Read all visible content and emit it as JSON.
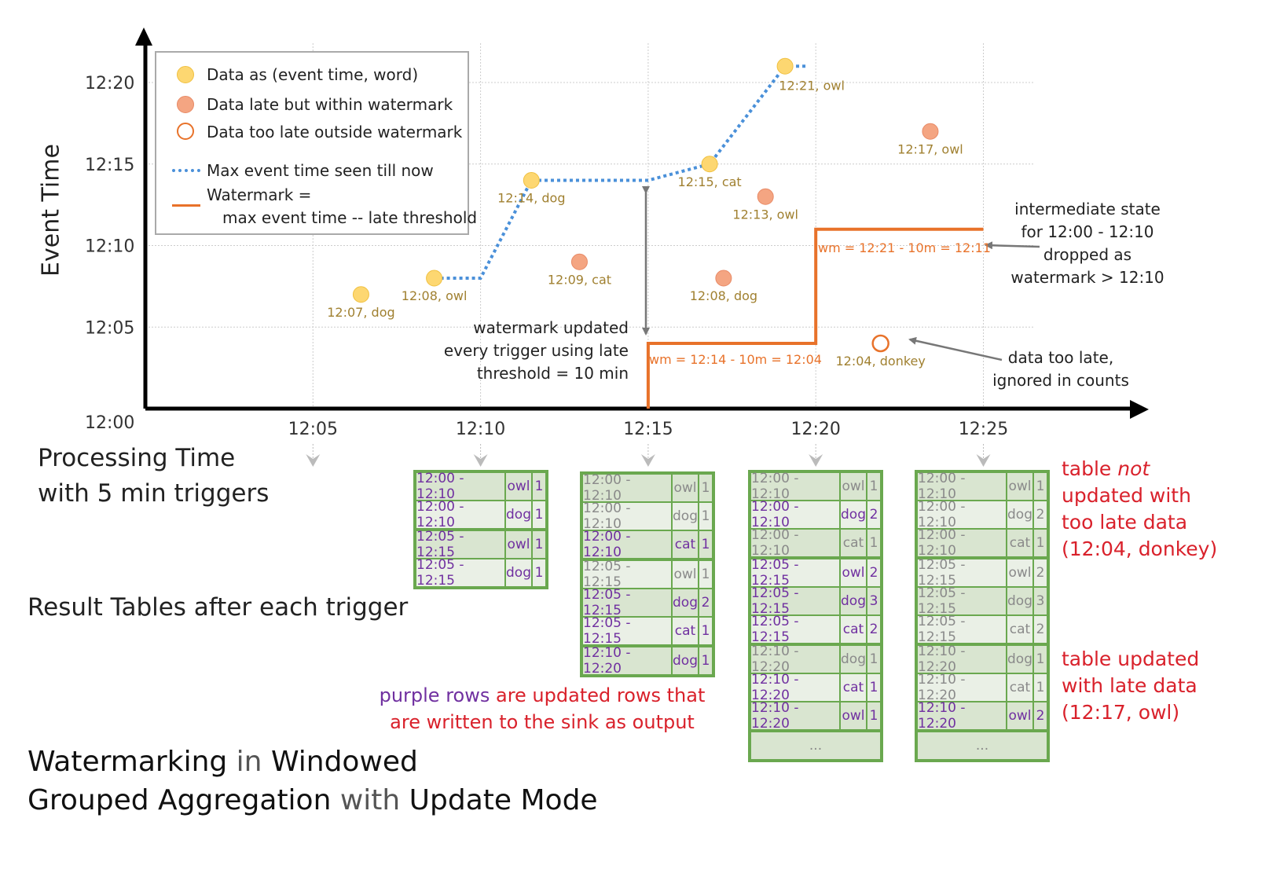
{
  "colors": {
    "data": "#fdd771",
    "late": "#f4a582",
    "too_late_stroke": "#e8722a",
    "max_line": "#4a90d9",
    "watermark": "#e8722a",
    "label": "#a08030",
    "purple": "#7030a0",
    "gray": "#8a8a8a",
    "green": "#6aa84f",
    "red": "#d9212b"
  },
  "axes": {
    "y_label": "Event Time",
    "x_label_line1": "Processing Time",
    "x_label_line2": "with 5 min triggers",
    "y_ticks": [
      "12:00",
      "12:05",
      "12:10",
      "12:15",
      "12:20"
    ],
    "x_ticks": [
      "12:05",
      "12:10",
      "12:15",
      "12:20",
      "12:25"
    ]
  },
  "legend": {
    "data": "Data as (event time, word)",
    "late": "Data late but within watermark",
    "too_late": "Data too late outside watermark",
    "max": "Max event time seen till now",
    "wm1": "Watermark =",
    "wm2": "max event time -- late threshold"
  },
  "points": [
    {
      "label": "12:07, dog",
      "processing": "12:06:26",
      "event": "12:07",
      "kind": "data"
    },
    {
      "label": "12:08, owl",
      "processing": "12:08:37",
      "event": "12:08",
      "kind": "data"
    },
    {
      "label": "12:14, dog",
      "processing": "12:11:31",
      "event": "12:14",
      "kind": "data"
    },
    {
      "label": "12:09, cat",
      "processing": "12:12:57",
      "event": "12:09",
      "kind": "late"
    },
    {
      "label": "12:15, cat",
      "processing": "12:16:50",
      "event": "12:15",
      "kind": "data"
    },
    {
      "label": "12:08, dog",
      "processing": "12:17:15",
      "event": "12:08",
      "kind": "late"
    },
    {
      "label": "12:13, owl",
      "processing": "12:18:30",
      "event": "12:13",
      "kind": "late"
    },
    {
      "label": "12:21, owl",
      "processing": "12:19:05",
      "event": "12:21",
      "kind": "data"
    },
    {
      "label": "12:04, donkey",
      "processing": "12:21:56",
      "event": "12:04",
      "kind": "too_late"
    },
    {
      "label": "12:17, owl",
      "processing": "12:23:25",
      "event": "12:17",
      "kind": "late"
    }
  ],
  "max_event_line": [
    [
      "12:08:37",
      "12:08"
    ],
    [
      "12:10",
      "12:08"
    ],
    [
      "12:11:31",
      "12:14"
    ],
    [
      "12:15",
      "12:14"
    ],
    [
      "12:16:50",
      "12:15"
    ],
    [
      "12:19:05",
      "12:21"
    ],
    [
      "12:19:45",
      "12:21"
    ]
  ],
  "watermark_line": [
    [
      "12:15",
      "12:00"
    ],
    [
      "12:15",
      "12:04"
    ],
    [
      "12:20",
      "12:04"
    ],
    [
      "12:20",
      "12:11"
    ],
    [
      "12:25",
      "12:11"
    ]
  ],
  "annotations": {
    "wm1": "wm = 12:14 - 10m = 12:04",
    "wm2": "wm = 12:21 - 10m = 12:11",
    "wm_updated": [
      "watermark updated",
      "every trigger using late",
      "threshold = 10 min"
    ],
    "intermediate": [
      "intermediate state",
      "for 12:00 - 12:10",
      "dropped as",
      "watermark > 12:10"
    ],
    "too_late": [
      "data too late,",
      "ignored in counts"
    ],
    "not_updated_1": "table ",
    "not_updated_em": "not",
    "not_updated_2": "updated with",
    "not_updated_3": "too late data",
    "not_updated_4": "(12:04, donkey)",
    "updated_1": "table updated",
    "updated_2": "with late data",
    "updated_3": "(12:17, owl)",
    "purple_rows": "purple rows",
    "purple_rest": " are updated rows that",
    "purple_line2": "are written to the sink as output"
  },
  "result_tables_label": "Result Tables after each trigger",
  "title": {
    "w1": "Watermarking",
    "w2": " in ",
    "w3": "Windowed",
    "w4": "Grouped Aggregation",
    "w5": " with ",
    "w6": "Update Mode"
  },
  "ellipsis": "...",
  "tables": [
    {
      "trigger": "12:10",
      "rows": [
        [
          "12:00 - 12:10",
          "owl",
          "1",
          true
        ],
        [
          "12:00 - 12:10",
          "dog",
          "1",
          true
        ],
        [
          "12:05 - 12:15",
          "owl",
          "1",
          true
        ],
        [
          "12:05 - 12:15",
          "dog",
          "1",
          true
        ]
      ],
      "more": false
    },
    {
      "trigger": "12:15",
      "rows": [
        [
          "12:00 - 12:10",
          "owl",
          "1",
          false
        ],
        [
          "12:00 - 12:10",
          "dog",
          "1",
          false
        ],
        [
          "12:00 - 12:10",
          "cat",
          "1",
          true
        ],
        [
          "12:05 - 12:15",
          "owl",
          "1",
          false
        ],
        [
          "12:05 - 12:15",
          "dog",
          "2",
          true
        ],
        [
          "12:05 - 12:15",
          "cat",
          "1",
          true
        ],
        [
          "12:10 - 12:20",
          "dog",
          "1",
          true
        ]
      ],
      "more": false
    },
    {
      "trigger": "12:20",
      "rows": [
        [
          "12:00 - 12:10",
          "owl",
          "1",
          false
        ],
        [
          "12:00 - 12:10",
          "dog",
          "2",
          true
        ],
        [
          "12:00 - 12:10",
          "cat",
          "1",
          false
        ],
        [
          "12:05 - 12:15",
          "owl",
          "2",
          true
        ],
        [
          "12:05 - 12:15",
          "dog",
          "3",
          true
        ],
        [
          "12:05 - 12:15",
          "cat",
          "2",
          true
        ],
        [
          "12:10 - 12:20",
          "dog",
          "1",
          false
        ],
        [
          "12:10 - 12:20",
          "cat",
          "1",
          true
        ],
        [
          "12:10 - 12:20",
          "owl",
          "1",
          true
        ]
      ],
      "more": true
    },
    {
      "trigger": "12:25",
      "rows": [
        [
          "12:00 - 12:10",
          "owl",
          "1",
          false
        ],
        [
          "12:00 - 12:10",
          "dog",
          "2",
          false
        ],
        [
          "12:00 - 12:10",
          "cat",
          "1",
          false
        ],
        [
          "12:05 - 12:15",
          "owl",
          "2",
          false
        ],
        [
          "12:05 - 12:15",
          "dog",
          "3",
          false
        ],
        [
          "12:05 - 12:15",
          "cat",
          "2",
          false
        ],
        [
          "12:10 - 12:20",
          "dog",
          "1",
          false
        ],
        [
          "12:10 - 12:20",
          "cat",
          "1",
          false
        ],
        [
          "12:10 - 12:20",
          "owl",
          "2",
          true
        ]
      ],
      "more": true
    }
  ]
}
